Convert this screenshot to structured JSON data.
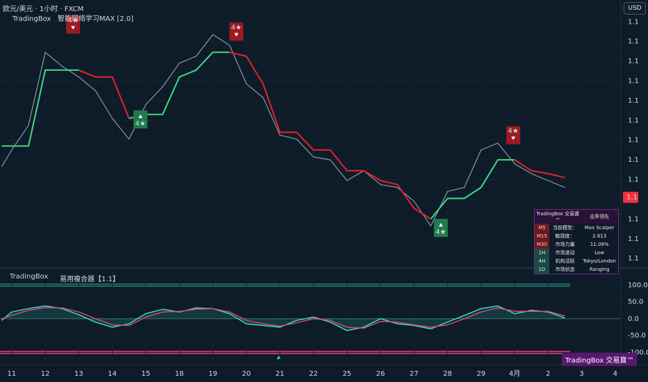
{
  "header": {
    "symbol": "欧元/美元 · 1小时 · FXCM",
    "indicator": "TradingBox   智能网络学习MAX [2.0]",
    "currency": "USD"
  },
  "chart_data": [
    {
      "type": "line",
      "x": [
        -0.3,
        0,
        0.5,
        1,
        1.5,
        2,
        2.5,
        3,
        3.5,
        4,
        4.5,
        5,
        5.5,
        6,
        6.5,
        7,
        7.5,
        8,
        8.5,
        9,
        9.5,
        10,
        10.5,
        11,
        11.5,
        12,
        12.5,
        13,
        13.5,
        14,
        14.5,
        15,
        15.5,
        16,
        16.5
      ],
      "series": [
        {
          "color": "#8d9aa6",
          "values": [
            1.0853,
            1.087,
            1.0895,
            1.0969,
            1.0955,
            1.0944,
            1.093,
            1.0902,
            1.0881,
            1.0916,
            1.0934,
            1.0958,
            1.0965,
            1.0987,
            1.0976,
            1.0937,
            1.0923,
            1.0885,
            1.0881,
            1.0863,
            1.086,
            1.0839,
            1.0849,
            1.0835,
            1.0832,
            1.0818,
            1.0793,
            1.0828,
            1.0832,
            1.087,
            1.0877,
            1.0856,
            1.0846,
            1.0839,
            1.0832
          ]
        },
        {
          "color": "#3ddc84",
          "values": [
            1.0874,
            1.0874,
            1.0874,
            1.0951,
            1.0951,
            1.0951,
            null,
            null,
            1.0902,
            1.0906,
            1.0906,
            1.0944,
            1.0951,
            1.0969,
            1.0969,
            null,
            null,
            null,
            null,
            null,
            null,
            null,
            null,
            null,
            null,
            null,
            1.08,
            1.0821,
            1.0821,
            1.0832,
            1.086,
            1.086,
            null,
            null,
            null
          ]
        },
        {
          "color": "#e8222b",
          "values": [
            null,
            null,
            null,
            null,
            null,
            1.0951,
            1.0944,
            1.0944,
            1.0902,
            null,
            null,
            null,
            null,
            null,
            1.0969,
            1.0965,
            1.0937,
            1.0888,
            1.0888,
            1.087,
            1.087,
            1.0849,
            1.0849,
            1.0839,
            1.0835,
            1.0811,
            1.08,
            null,
            null,
            null,
            null,
            1.086,
            1.0849,
            1.0846,
            1.0842
          ]
        }
      ],
      "xlim": [
        -0.35,
        18.17
      ],
      "xticks": [
        {
          "value": 0,
          "label": "11"
        },
        {
          "value": 1,
          "label": "12"
        },
        {
          "value": 2,
          "label": "13"
        },
        {
          "value": 3,
          "label": "14"
        },
        {
          "value": 4,
          "label": "15"
        },
        {
          "value": 5,
          "label": "18"
        },
        {
          "value": 6,
          "label": "19"
        },
        {
          "value": 7,
          "label": "20"
        },
        {
          "value": 8,
          "label": "21"
        },
        {
          "value": 9,
          "label": "22"
        },
        {
          "value": 10,
          "label": "25"
        },
        {
          "value": 11,
          "label": "26"
        },
        {
          "value": 12,
          "label": "27"
        },
        {
          "value": 13,
          "label": "28"
        },
        {
          "value": 14,
          "label": "29"
        },
        {
          "value": 15,
          "label": "4月"
        },
        {
          "value": 16,
          "label": "2"
        },
        {
          "value": 17,
          "label": "3"
        },
        {
          "value": 18,
          "label": "4"
        }
      ],
      "ylim": [
        1.0751,
        1.1022
      ],
      "yticks": [
        {
          "value": 1.1,
          "label": "1.1"
        },
        {
          "value": 1.098,
          "label": "1.1"
        },
        {
          "value": 1.096,
          "label": "1.1"
        },
        {
          "value": 1.094,
          "label": "1.1"
        },
        {
          "value": 1.092,
          "label": "1.1"
        },
        {
          "value": 1.09,
          "label": "1.1"
        },
        {
          "value": 1.088,
          "label": "1.1"
        },
        {
          "value": 1.086,
          "label": "1.1"
        },
        {
          "value": 1.084,
          "label": "1.1"
        },
        {
          "value": 1.082,
          "label": "1.1"
        },
        {
          "value": 1.08,
          "label": "1.1"
        },
        {
          "value": 1.078,
          "label": "1.1"
        },
        {
          "value": 1.076,
          "label": "1.1"
        }
      ],
      "last_price": {
        "value": 1.0822,
        "label": "1.1"
      },
      "signals": [
        {
          "x": 1.83,
          "price": 1.0997,
          "label": "4★",
          "direction": "sell"
        },
        {
          "x": 6.7,
          "price": 1.099,
          "label": "4★",
          "direction": "sell"
        },
        {
          "x": 14.96,
          "price": 1.0885,
          "label": "4★",
          "direction": "sell"
        },
        {
          "x": 12.8,
          "price": 1.0791,
          "label": "4★",
          "direction": "buy"
        },
        {
          "x": 3.84,
          "price": 1.0901,
          "label": "4★",
          "direction": "buy"
        }
      ]
    },
    {
      "type": "line",
      "source": "TradingBox",
      "title": "易用複合器【1.1】",
      "x": [
        -0.3,
        0,
        0.5,
        1,
        1.5,
        2,
        2.5,
        3,
        3.5,
        4,
        4.5,
        5,
        5.5,
        6,
        6.5,
        7,
        7.5,
        8,
        8.5,
        9,
        9.5,
        10,
        10.5,
        11,
        11.5,
        12,
        12.5,
        13,
        13.5,
        14,
        14.5,
        15,
        15.5,
        16,
        16.5
      ],
      "series": [
        {
          "color": "#35e0c2",
          "values": [
            -5,
            20,
            30,
            38,
            30,
            12,
            -10,
            -25,
            -15,
            15,
            28,
            20,
            32,
            30,
            15,
            -15,
            -20,
            -25,
            -5,
            5,
            -10,
            -35,
            -25,
            0,
            -15,
            -20,
            -30,
            -10,
            10,
            30,
            38,
            15,
            25,
            20,
            2
          ]
        },
        {
          "color": "#e0457b",
          "values": [
            0,
            10,
            25,
            33,
            32,
            20,
            0,
            -18,
            -20,
            5,
            20,
            22,
            28,
            30,
            20,
            -5,
            -15,
            -22,
            -12,
            0,
            -5,
            -25,
            -28,
            -8,
            -10,
            -18,
            -25,
            -18,
            0,
            20,
            32,
            22,
            22,
            22,
            8
          ]
        }
      ],
      "xlim": [
        -0.35,
        18.17
      ],
      "ylim": [
        -136,
        148
      ],
      "yticks": [
        {
          "value": 100,
          "label": "100.0"
        },
        {
          "value": 50,
          "label": "50.0"
        },
        {
          "value": 0,
          "label": "0.0"
        },
        {
          "value": -50,
          "label": "-50.0"
        },
        {
          "value": -100,
          "label": "-100.0"
        }
      ]
    }
  ],
  "info_table": {
    "title": "TradingBox 交易寶™",
    "subtitle": "业界领先",
    "rows": [
      [
        "M5",
        "当前模型：",
        "Max Scalper"
      ],
      [
        "M15",
        "敏感度：",
        "2.613"
      ],
      [
        "M30",
        "市场力量",
        "11.09%"
      ],
      [
        "1H",
        "市场波动",
        "Low"
      ],
      [
        "4H",
        "机构活跃",
        "Tokyo/London"
      ],
      [
        "1D",
        "市场状态",
        "Ranging"
      ]
    ]
  },
  "logo": "TradingBox 交易寶™"
}
